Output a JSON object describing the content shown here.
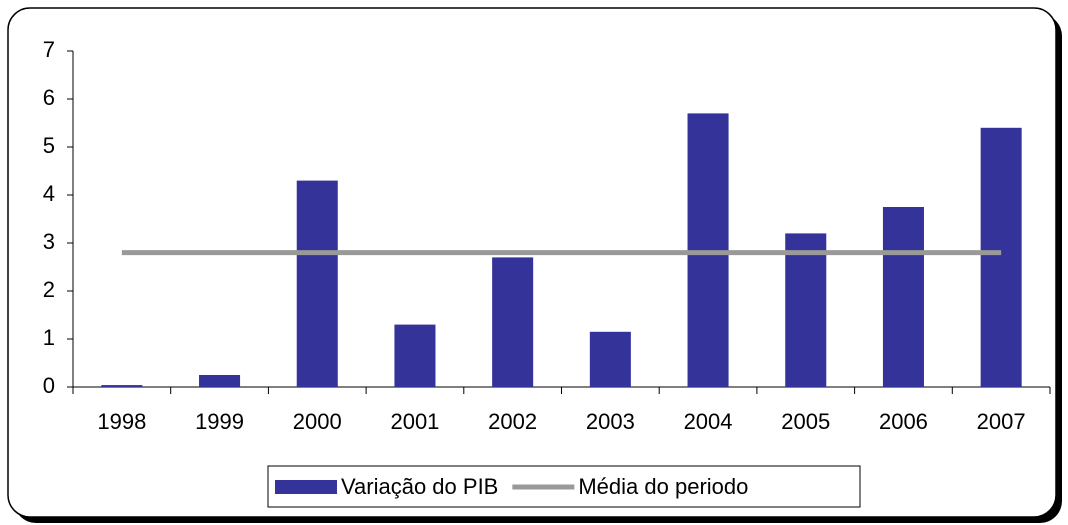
{
  "chart_data": {
    "type": "bar_line",
    "categories": [
      "1998",
      "1999",
      "2000",
      "2001",
      "2002",
      "2003",
      "2004",
      "2005",
      "2006",
      "2007"
    ],
    "series": [
      {
        "name": "Variação do PIB",
        "type": "bar",
        "color": "#333399",
        "values": [
          0.04,
          0.25,
          4.3,
          1.3,
          2.7,
          1.15,
          5.7,
          3.2,
          3.75,
          5.4
        ]
      },
      {
        "name": "Média do periodo",
        "type": "line",
        "color": "#999999",
        "values": [
          2.8,
          2.8,
          2.8,
          2.8,
          2.8,
          2.8,
          2.8,
          2.8,
          2.8,
          2.8
        ]
      }
    ],
    "ylim": [
      0,
      7
    ],
    "yticks": [
      0,
      1,
      2,
      3,
      4,
      5,
      6,
      7
    ],
    "legend": "bottom"
  }
}
